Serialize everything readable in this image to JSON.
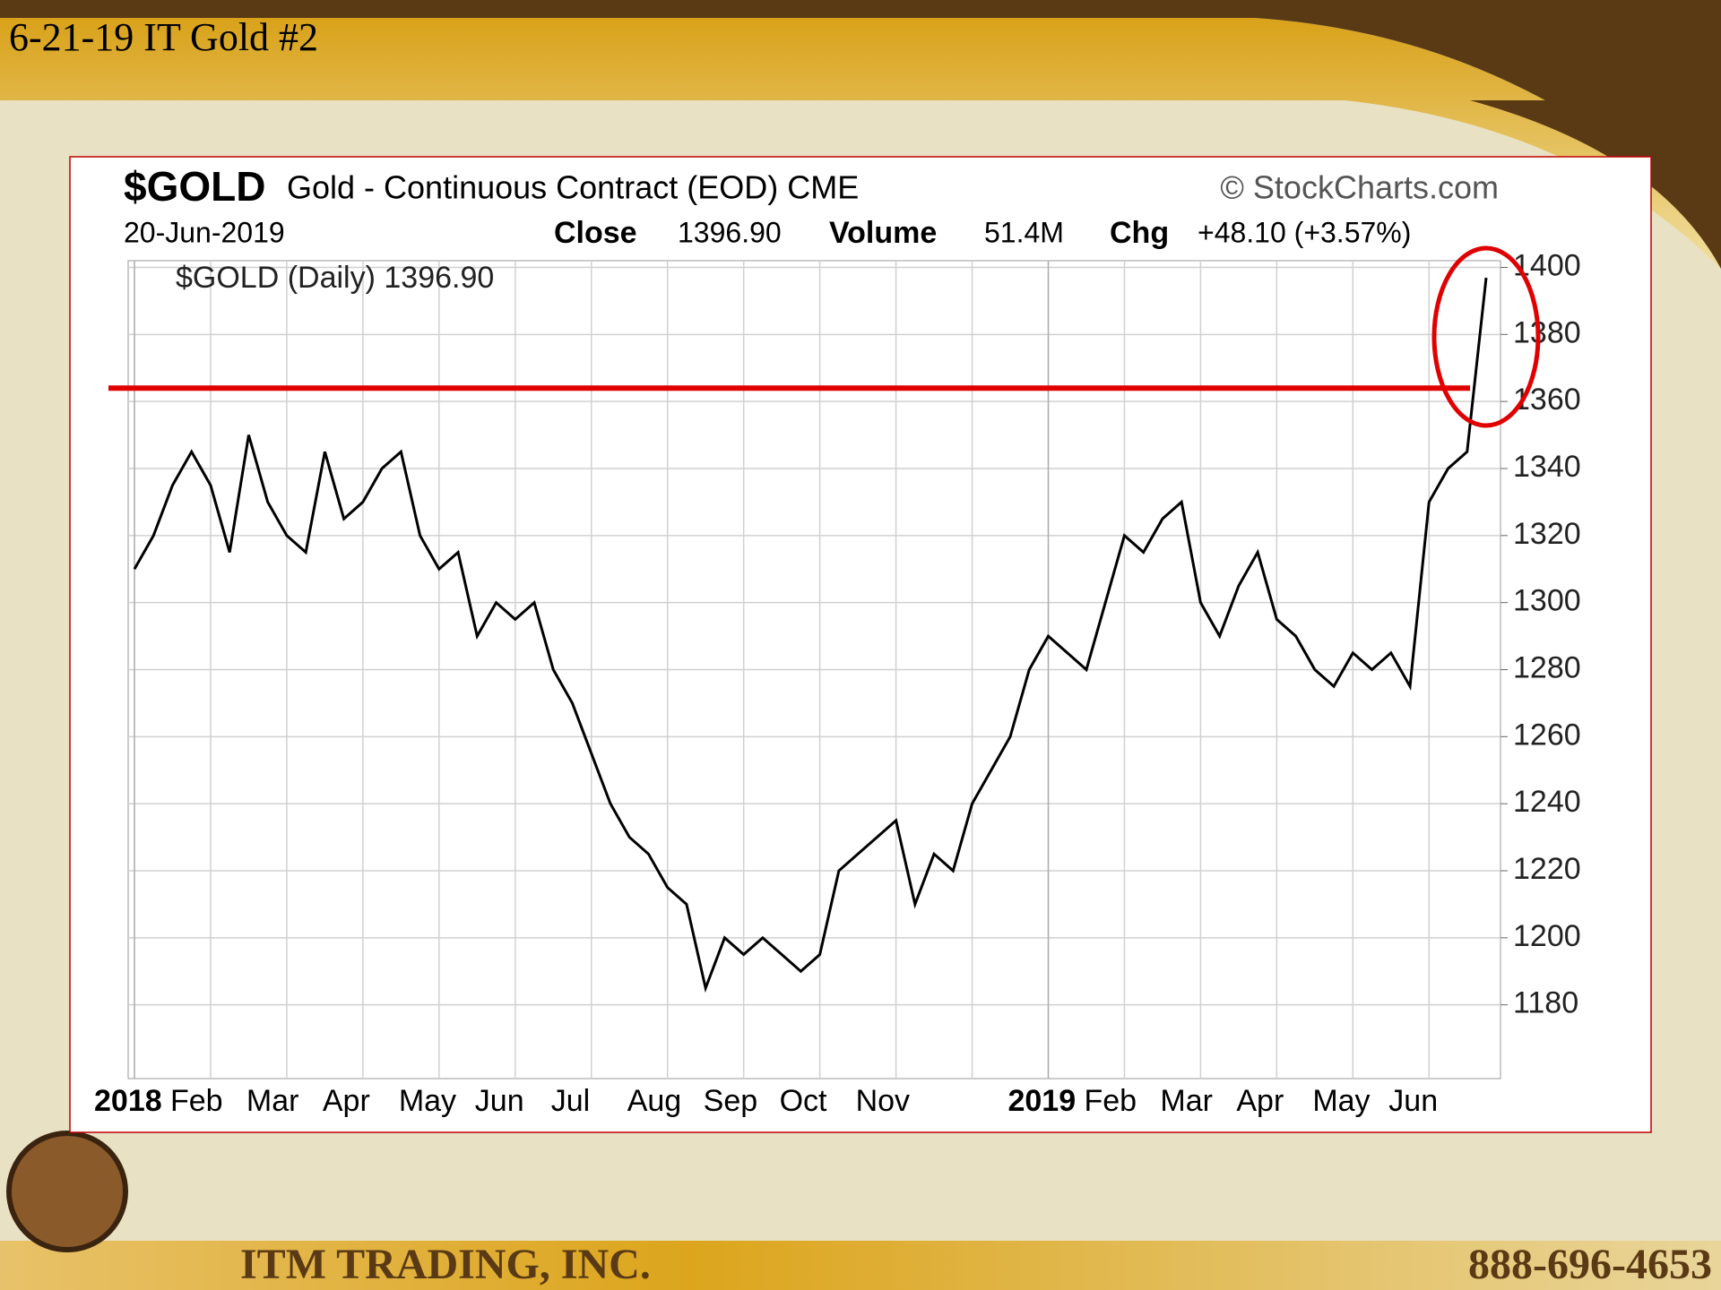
{
  "slide": {
    "title": "6-21-19 IT Gold #2",
    "company": "ITM TRADING, INC.",
    "phone": "888-696-4653"
  },
  "chart_data": {
    "type": "line",
    "symbol": "$GOLD",
    "title": "Gold - Continuous Contract (EOD) CME",
    "source": "© StockCharts.com",
    "date": "20-Jun-2019",
    "close_label": "Close",
    "close": "1396.90",
    "volume_label": "Volume",
    "volume": "51.4M",
    "chg_label": "Chg",
    "chg": "+48.10 (+3.57%)",
    "legend": "$GOLD (Daily) 1396.90",
    "categories": [
      "2018",
      null,
      null,
      null,
      "Feb",
      null,
      null,
      null,
      "Mar",
      null,
      null,
      null,
      "Apr",
      null,
      null,
      null,
      "May",
      null,
      null,
      null,
      "Jun",
      null,
      null,
      null,
      "Jul",
      null,
      null,
      null,
      "Aug",
      null,
      null,
      null,
      "Sep",
      null,
      null,
      null,
      "Oct",
      null,
      null,
      null,
      "Nov",
      null,
      null,
      null,
      null,
      null,
      null,
      null,
      "2019",
      null,
      null,
      null,
      "Feb",
      null,
      null,
      null,
      "Mar",
      null,
      null,
      null,
      "Apr",
      null,
      null,
      null,
      "May",
      null,
      null,
      null,
      "Jun",
      null,
      null,
      null
    ],
    "values": [
      1310,
      1320,
      1335,
      1345,
      1335,
      1315,
      1350,
      1330,
      1320,
      1315,
      1345,
      1325,
      1330,
      1340,
      1345,
      1320,
      1310,
      1315,
      1290,
      1300,
      1295,
      1300,
      1280,
      1270,
      1255,
      1240,
      1230,
      1225,
      1215,
      1210,
      1185,
      1200,
      1195,
      1200,
      1195,
      1190,
      1195,
      1220,
      1225,
      1230,
      1235,
      1210,
      1225,
      1220,
      1240,
      1250,
      1260,
      1280,
      1290,
      1285,
      1280,
      1300,
      1320,
      1315,
      1325,
      1330,
      1300,
      1290,
      1305,
      1315,
      1295,
      1290,
      1280,
      1275,
      1285,
      1280,
      1285,
      1275,
      1330,
      1340,
      1345,
      1396.9
    ],
    "color": "#000000",
    "resistance_level": 1364,
    "resistance_color": "#e00000",
    "ylim": [
      1158,
      1402
    ],
    "yticks": [
      1180,
      1200,
      1220,
      1240,
      1260,
      1280,
      1300,
      1320,
      1340,
      1360,
      1380,
      1400
    ],
    "grid": true
  }
}
